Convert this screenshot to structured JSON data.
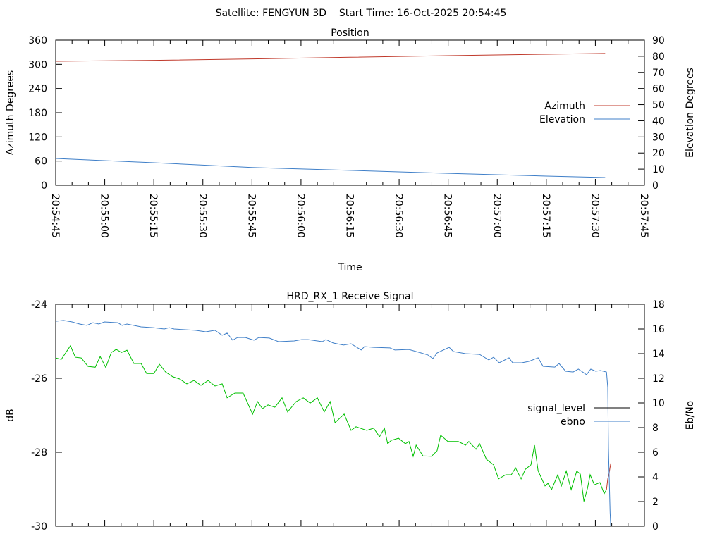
{
  "header": {
    "title": "Satellite: FENGYUN 3D    Start Time: 16-Oct-2025 20:54:45"
  },
  "chart_data": [
    {
      "type": "line",
      "title": "Position",
      "xlabel": "Time",
      "ylabel": "Azimuth Degrees",
      "y2label": "Elevation Degrees",
      "xlim_seconds": [
        0,
        180
      ],
      "x_tick_labels": [
        "20:54:45",
        "20:55:00",
        "20:55:15",
        "20:55:30",
        "20:55:45",
        "20:56:00",
        "20:56:15",
        "20:56:30",
        "20:56:45",
        "20:57:00",
        "20:57:15",
        "20:57:30",
        "20:57:45"
      ],
      "ylim": [
        0,
        360
      ],
      "y_ticks": [
        "0",
        "60",
        "120",
        "180",
        "240",
        "300",
        "360"
      ],
      "y2lim": [
        0,
        90
      ],
      "y2_ticks": [
        "0",
        "10",
        "20",
        "30",
        "40",
        "50",
        "60",
        "70",
        "80",
        "90"
      ],
      "legend_position": "right",
      "series": [
        {
          "name": "Azimuth",
          "axis": "y",
          "color": "#c0392b",
          "points": [
            [
              0,
              307.5
            ],
            [
              30,
              310
            ],
            [
              60,
              313.5
            ],
            [
              90,
              317.5
            ],
            [
              120,
              321.5
            ],
            [
              150,
              325
            ],
            [
              168,
              327
            ]
          ]
        },
        {
          "name": "Elevation",
          "axis": "y2",
          "color": "#3f7fc8",
          "points": [
            [
              0,
              16.6
            ],
            [
              30,
              14.0
            ],
            [
              60,
              11.0
            ],
            [
              90,
              9.2
            ],
            [
              120,
              7.4
            ],
            [
              150,
              5.7
            ],
            [
              168,
              4.8
            ]
          ]
        }
      ]
    },
    {
      "type": "line",
      "title": "HRD_RX_1 Receive Signal",
      "ylabel": "dB",
      "y2label": "Eb/No",
      "xlim_seconds": [
        0,
        180
      ],
      "ylim": [
        -30,
        -24
      ],
      "y_ticks": [
        "-30",
        "-28",
        "-26",
        "-24"
      ],
      "y2lim": [
        0,
        18
      ],
      "y2_ticks": [
        "0",
        "2",
        "4",
        "6",
        "8",
        "10",
        "12",
        "14",
        "16",
        "18"
      ],
      "legend_position": "right",
      "legend": [
        {
          "name": "signal_level",
          "color": "#000000"
        },
        {
          "name": "ebno",
          "color": "#3f7fc8"
        }
      ],
      "series": [
        {
          "name": "signal_level",
          "axis": "y",
          "color": "#00c000",
          "points": [
            [
              0,
              -25.45
            ],
            [
              1.7,
              -25.49
            ],
            [
              4.5,
              -25.12
            ],
            [
              6.0,
              -25.43
            ],
            [
              7.8,
              -25.45
            ],
            [
              9.9,
              -25.68
            ],
            [
              12.1,
              -25.7
            ],
            [
              13.6,
              -25.41
            ],
            [
              15.3,
              -25.71
            ],
            [
              17.0,
              -25.3
            ],
            [
              18.5,
              -25.22
            ],
            [
              20.1,
              -25.3
            ],
            [
              21.8,
              -25.24
            ],
            [
              23.9,
              -25.6
            ],
            [
              26.1,
              -25.6
            ],
            [
              27.8,
              -25.87
            ],
            [
              30.0,
              -25.87
            ],
            [
              31.7,
              -25.62
            ],
            [
              33.6,
              -25.83
            ],
            [
              35.8,
              -25.96
            ],
            [
              37.9,
              -26.02
            ],
            [
              40.1,
              -26.15
            ],
            [
              42.3,
              -26.06
            ],
            [
              44.4,
              -26.19
            ],
            [
              46.6,
              -26.06
            ],
            [
              48.7,
              -26.21
            ],
            [
              50.9,
              -26.15
            ],
            [
              52.4,
              -26.53
            ],
            [
              54.8,
              -26.4
            ],
            [
              57.3,
              -26.4
            ],
            [
              60.2,
              -26.97
            ],
            [
              61.7,
              -26.63
            ],
            [
              63.2,
              -26.82
            ],
            [
              64.9,
              -26.72
            ],
            [
              67.0,
              -26.78
            ],
            [
              69.2,
              -26.53
            ],
            [
              70.9,
              -26.91
            ],
            [
              73.5,
              -26.63
            ],
            [
              75.7,
              -26.53
            ],
            [
              77.8,
              -26.67
            ],
            [
              80.0,
              -26.53
            ],
            [
              82.1,
              -26.91
            ],
            [
              83.9,
              -26.63
            ],
            [
              85.4,
              -27.2
            ],
            [
              88.2,
              -26.97
            ],
            [
              90.3,
              -27.41
            ],
            [
              91.8,
              -27.31
            ],
            [
              95.1,
              -27.41
            ],
            [
              97.2,
              -27.35
            ],
            [
              99.0,
              -27.58
            ],
            [
              100.5,
              -27.35
            ],
            [
              101.5,
              -27.77
            ],
            [
              102.6,
              -27.68
            ],
            [
              104.8,
              -27.62
            ],
            [
              106.9,
              -27.77
            ],
            [
              108.0,
              -27.71
            ],
            [
              109.3,
              -28.11
            ],
            [
              110.2,
              -27.81
            ],
            [
              112.3,
              -28.1
            ],
            [
              114.9,
              -28.11
            ],
            [
              116.6,
              -27.96
            ],
            [
              117.7,
              -27.54
            ],
            [
              119.9,
              -27.71
            ],
            [
              123.1,
              -27.71
            ],
            [
              125.3,
              -27.81
            ],
            [
              126.3,
              -27.71
            ],
            [
              128.5,
              -27.92
            ],
            [
              129.6,
              -27.77
            ],
            [
              131.7,
              -28.19
            ],
            [
              133.9,
              -28.34
            ],
            [
              135.4,
              -28.72
            ],
            [
              137.6,
              -28.61
            ],
            [
              139.3,
              -28.61
            ],
            [
              140.6,
              -28.42
            ],
            [
              142.3,
              -28.72
            ],
            [
              143.6,
              -28.46
            ],
            [
              145.3,
              -28.34
            ],
            [
              146.4,
              -27.81
            ],
            [
              147.5,
              -28.5
            ],
            [
              149.6,
              -28.91
            ],
            [
              150.5,
              -28.84
            ],
            [
              151.6,
              -29.01
            ],
            [
              153.5,
              -28.61
            ],
            [
              154.6,
              -28.91
            ],
            [
              156.1,
              -28.51
            ],
            [
              157.6,
              -29.01
            ],
            [
              159.3,
              -28.51
            ],
            [
              160.4,
              -28.59
            ],
            [
              161.5,
              -29.33
            ],
            [
              162.6,
              -28.97
            ],
            [
              163.4,
              -28.61
            ],
            [
              164.7,
              -28.88
            ],
            [
              166.4,
              -28.82
            ],
            [
              167.7,
              -29.12
            ],
            [
              168.4,
              -29.01
            ]
          ]
        },
        {
          "name": "signal_level_tail",
          "axis": "y",
          "color": "#c0392b",
          "points": [
            [
              168.4,
              -29.01
            ],
            [
              168.8,
              -28.72
            ],
            [
              169.2,
              -28.57
            ],
            [
              169.7,
              -28.3
            ]
          ]
        },
        {
          "name": "ebno",
          "axis": "y2",
          "color": "#3f7fc8",
          "points": [
            [
              0.2,
              16.63
            ],
            [
              2.4,
              16.69
            ],
            [
              5.0,
              16.57
            ],
            [
              7.3,
              16.4
            ],
            [
              9.5,
              16.29
            ],
            [
              11.4,
              16.51
            ],
            [
              13.2,
              16.4
            ],
            [
              14.9,
              16.57
            ],
            [
              19.0,
              16.51
            ],
            [
              20.3,
              16.29
            ],
            [
              21.8,
              16.4
            ],
            [
              26.1,
              16.17
            ],
            [
              29.8,
              16.11
            ],
            [
              33.2,
              16.0
            ],
            [
              34.7,
              16.11
            ],
            [
              36.2,
              16.0
            ],
            [
              42.7,
              15.89
            ],
            [
              45.9,
              15.77
            ],
            [
              48.7,
              15.89
            ],
            [
              50.9,
              15.49
            ],
            [
              52.4,
              15.66
            ],
            [
              54.1,
              15.09
            ],
            [
              55.6,
              15.31
            ],
            [
              58.0,
              15.31
            ],
            [
              60.6,
              15.09
            ],
            [
              62.1,
              15.31
            ],
            [
              65.3,
              15.26
            ],
            [
              68.1,
              14.97
            ],
            [
              72.9,
              15.03
            ],
            [
              75.2,
              15.14
            ],
            [
              77.2,
              15.14
            ],
            [
              81.5,
              14.97
            ],
            [
              82.6,
              15.14
            ],
            [
              84.9,
              14.86
            ],
            [
              88.0,
              14.69
            ],
            [
              90.3,
              14.8
            ],
            [
              93.4,
              14.29
            ],
            [
              94.4,
              14.57
            ],
            [
              97.2,
              14.51
            ],
            [
              102.2,
              14.46
            ],
            [
              103.7,
              14.29
            ],
            [
              108.0,
              14.34
            ],
            [
              111.7,
              14.06
            ],
            [
              113.8,
              13.89
            ],
            [
              115.3,
              13.6
            ],
            [
              116.6,
              14.06
            ],
            [
              120.3,
              14.51
            ],
            [
              121.6,
              14.17
            ],
            [
              125.3,
              14.0
            ],
            [
              129.6,
              13.94
            ],
            [
              132.4,
              13.49
            ],
            [
              133.9,
              13.71
            ],
            [
              135.6,
              13.26
            ],
            [
              138.6,
              13.66
            ],
            [
              139.7,
              13.26
            ],
            [
              142.5,
              13.26
            ],
            [
              144.7,
              13.37
            ],
            [
              147.5,
              13.66
            ],
            [
              149.0,
              12.97
            ],
            [
              152.6,
              12.91
            ],
            [
              153.9,
              13.2
            ],
            [
              155.9,
              12.57
            ],
            [
              158.2,
              12.51
            ],
            [
              159.8,
              12.74
            ],
            [
              162.3,
              12.29
            ],
            [
              163.6,
              12.74
            ],
            [
              165.1,
              12.57
            ],
            [
              166.6,
              12.63
            ],
            [
              168.4,
              12.51
            ],
            [
              168.8,
              11.26
            ],
            [
              169.0,
              6.29
            ],
            [
              169.5,
              1.14
            ],
            [
              169.7,
              0
            ]
          ]
        }
      ]
    }
  ]
}
